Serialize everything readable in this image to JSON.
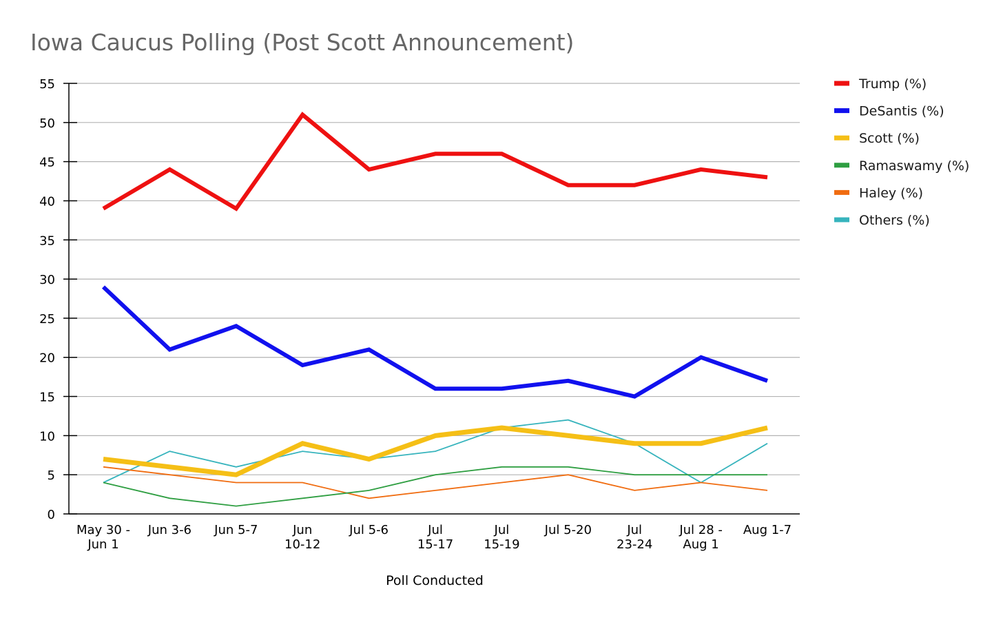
{
  "chart_data": {
    "type": "line",
    "title": "Iowa Caucus Polling (Post Scott Announcement)",
    "xlabel": "Poll Conducted",
    "ylabel": "",
    "ylim": [
      0,
      55
    ],
    "yticks": [
      0,
      5,
      10,
      15,
      20,
      25,
      30,
      35,
      40,
      45,
      50,
      55
    ],
    "grid": true,
    "legend_position": "right",
    "categories": [
      [
        "May 30 -",
        "Jun 1"
      ],
      [
        "Jun 3-6"
      ],
      [
        "Jun 5-7"
      ],
      [
        "Jun",
        "10-12"
      ],
      [
        "Jul 5-6"
      ],
      [
        "Jul",
        "15-17"
      ],
      [
        "Jul",
        "15-19"
      ],
      [
        "Jul 5-20"
      ],
      [
        "Jul",
        "23-24"
      ],
      [
        "Jul 28 -",
        "Aug 1"
      ],
      [
        "Aug 1-7"
      ]
    ],
    "series": [
      {
        "name": "Trump (%)",
        "color": "#ee1111",
        "values": [
          39,
          44,
          39,
          51,
          44,
          46,
          46,
          42,
          42,
          44,
          43
        ]
      },
      {
        "name": "DeSantis (%)",
        "color": "#1111ee",
        "values": [
          29,
          21,
          24,
          19,
          21,
          16,
          16,
          17,
          15,
          20,
          17
        ]
      },
      {
        "name": "Scott (%)",
        "color": "#f5bf16",
        "values": [
          7,
          6,
          5,
          9,
          7,
          10,
          11,
          10,
          9,
          9,
          11
        ]
      },
      {
        "name": "Ramaswamy (%)",
        "color": "#2e9e41",
        "values": [
          4,
          2,
          1,
          2,
          3,
          5,
          6,
          6,
          5,
          5,
          5
        ]
      },
      {
        "name": "Haley (%)",
        "color": "#f06c10",
        "values": [
          6,
          5,
          4,
          4,
          2,
          3,
          4,
          5,
          3,
          4,
          3
        ]
      },
      {
        "name": "Others (%)",
        "color": "#37b4bd",
        "values": [
          4,
          8,
          6,
          8,
          7,
          8,
          11,
          12,
          9,
          4,
          9
        ]
      }
    ]
  }
}
